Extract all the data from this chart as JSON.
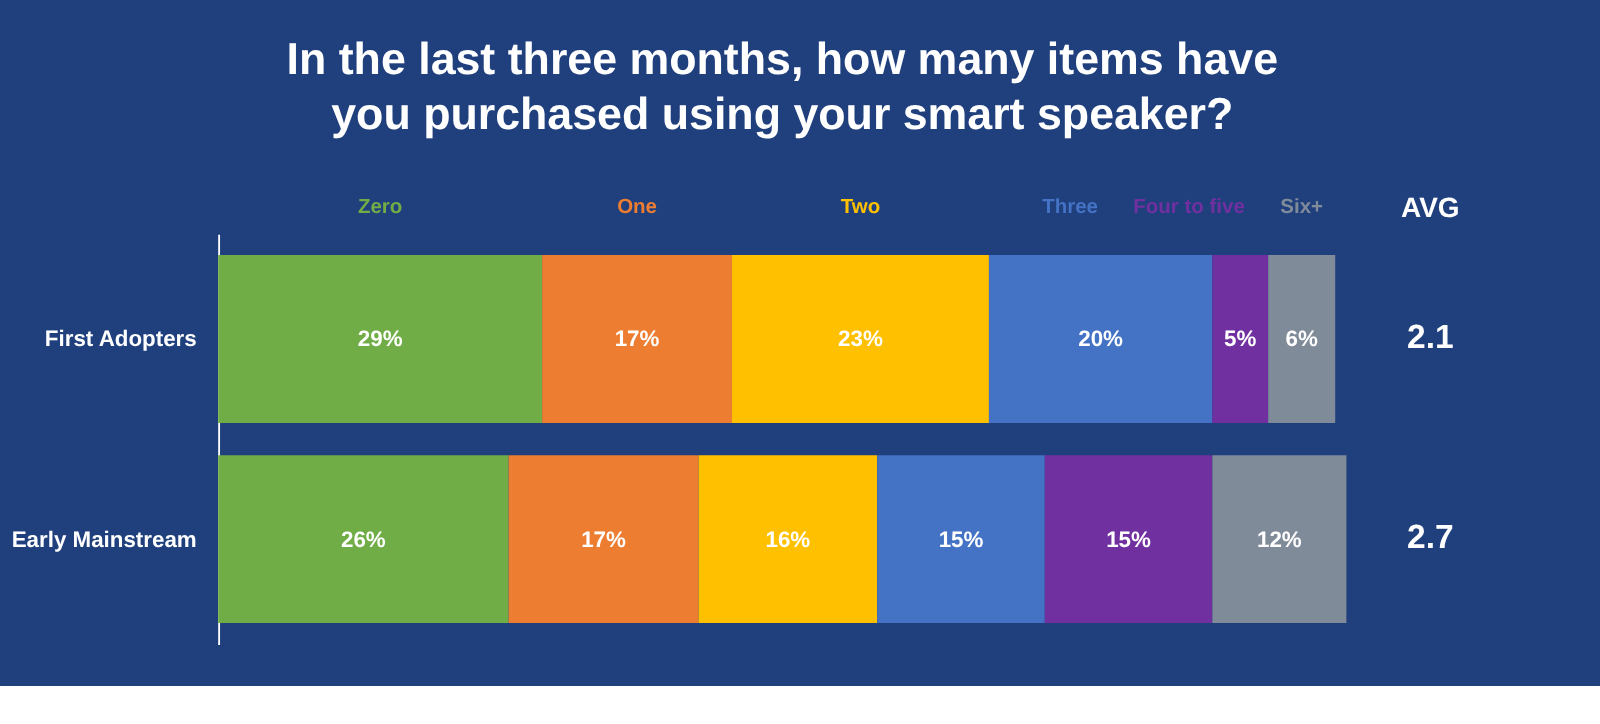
{
  "chart_data": {
    "type": "bar",
    "orientation": "horizontal",
    "stacked": true,
    "title": "In the last three months, how many items have you purchased using your smart speaker?",
    "categories": [
      "First Adopters",
      "Early Mainstream"
    ],
    "series": [
      {
        "name": "Zero",
        "color": "#70ad47",
        "values": [
          29,
          26
        ],
        "value_labels": [
          "29%",
          "26%"
        ]
      },
      {
        "name": "One",
        "color": "#ed7d31",
        "values": [
          17,
          17
        ],
        "value_labels": [
          "17%",
          "17%"
        ]
      },
      {
        "name": "Two",
        "color": "#ffc000",
        "values": [
          23,
          16
        ],
        "value_labels": [
          "23%",
          "16%"
        ]
      },
      {
        "name": "Three",
        "color": "#4472c4",
        "values": [
          20,
          15
        ],
        "value_labels": [
          "20%",
          "15%"
        ]
      },
      {
        "name": "Four to five",
        "color": "#7030a0",
        "values": [
          5,
          15
        ],
        "value_labels": [
          "5%",
          "15%"
        ]
      },
      {
        "name": "Six+",
        "color": "#808b9a",
        "values": [
          6,
          12
        ],
        "value_labels": [
          "6%",
          "12%"
        ]
      }
    ],
    "xlim": [
      0,
      101
    ],
    "tick_labels": "y",
    "legend": "top",
    "annotations": [
      "AVG",
      "2.1",
      "2.7"
    ]
  }
}
